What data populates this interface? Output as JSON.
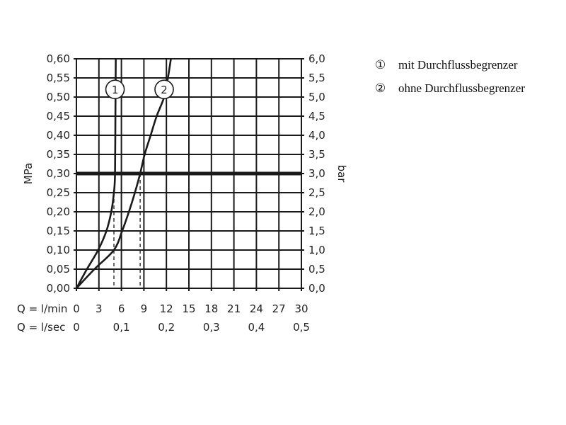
{
  "chart_data": {
    "type": "line",
    "title": "",
    "xlabel_rows": [
      "Q = l/min",
      "Q = l/sec"
    ],
    "ylabel_left": "MPa",
    "ylabel_right": "bar",
    "xlim": [
      0,
      30
    ],
    "ylim": [
      0,
      0.6
    ],
    "grid": true,
    "x_ticks_lmin": [
      "0",
      "3",
      "6",
      "9",
      "12",
      "15",
      "18",
      "21",
      "24",
      "27",
      "30"
    ],
    "x_ticks_lsec": [
      {
        "at": 0,
        "label": "0"
      },
      {
        "at": 6,
        "label": "0,1"
      },
      {
        "at": 12,
        "label": "0,2"
      },
      {
        "at": 18,
        "label": "0,3"
      },
      {
        "at": 24,
        "label": "0,4"
      },
      {
        "at": 30,
        "label": "0,5"
      }
    ],
    "y_ticks_left": [
      "0,00",
      "0,05",
      "0,10",
      "0,15",
      "0,20",
      "0,25",
      "0,30",
      "0,35",
      "0,40",
      "0,45",
      "0,50",
      "0,55",
      "0,60"
    ],
    "y_ticks_right": [
      "0,0",
      "0,5",
      "1,0",
      "1,5",
      "2,0",
      "2,5",
      "3,0",
      "3,5",
      "4,0",
      "4,5",
      "5,0",
      "5,5",
      "6,0"
    ],
    "reference_line_y": 0.3,
    "series": [
      {
        "name": "mit Durchflussbegrenzer",
        "marker": "1",
        "x": [
          0,
          1.4,
          2.9,
          4.0,
          4.65,
          5.0,
          5.15,
          5.2,
          5.25
        ],
        "y": [
          0,
          0.05,
          0.1,
          0.15,
          0.2,
          0.25,
          0.3,
          0.45,
          0.6
        ],
        "label_at": [
          5.15,
          0.52
        ],
        "dashed_drop": {
          "x": 5.0,
          "from_y": 0.25
        }
      },
      {
        "name": "ohne Durchflussbegrenzer",
        "marker": "2",
        "x": [
          0,
          2.4,
          5.0,
          6.1,
          7.0,
          7.8,
          8.5,
          9.1,
          9.9,
          10.7,
          11.7,
          12.2,
          12.6
        ],
        "y": [
          0,
          0.05,
          0.1,
          0.15,
          0.2,
          0.25,
          0.3,
          0.35,
          0.4,
          0.45,
          0.5,
          0.55,
          0.6
        ],
        "label_at": [
          11.7,
          0.52
        ],
        "dashed_drop": {
          "x": 8.5,
          "from_y": 0.3
        }
      }
    ],
    "legend": {
      "placement": "right",
      "items": [
        {
          "marker": "①",
          "label": "mit Durchflussbegrenzer"
        },
        {
          "marker": "②",
          "label": "ohne Durchflussbegrenzer"
        }
      ]
    },
    "colors": {
      "line": "#1a1a1a",
      "grid": "#1a1a1a"
    }
  }
}
